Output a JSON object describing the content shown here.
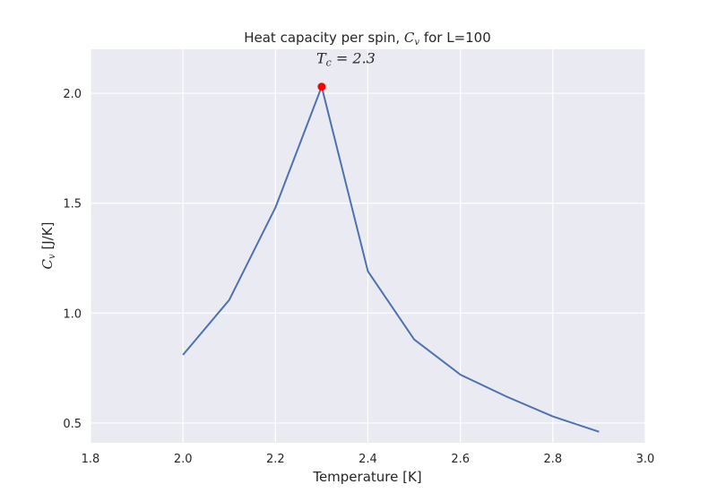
{
  "chart_data": {
    "type": "line",
    "title": {
      "prefix": "Heat capacity per spin, ",
      "math_main": "C",
      "math_sub": "v",
      "suffix": " for L=100"
    },
    "xlabel": "Temperature [K]",
    "ylabel": {
      "math_main": "C",
      "math_sub": "v",
      "suffix": " [J/K]"
    },
    "xlim": [
      1.8,
      3.0
    ],
    "ylim": [
      0.41,
      2.2
    ],
    "xticks": [
      1.8,
      2.0,
      2.2,
      2.4,
      2.6,
      2.8,
      3.0
    ],
    "xtick_labels": [
      "1.8",
      "2.0",
      "2.2",
      "2.4",
      "2.6",
      "2.8",
      "3.0"
    ],
    "yticks": [
      0.5,
      1.0,
      1.5,
      2.0
    ],
    "ytick_labels": [
      "0.5",
      "1.0",
      "1.5",
      "2.0"
    ],
    "grid": true,
    "background": "#eaeaf2",
    "series": [
      {
        "color": "#4c72b0",
        "x": [
          2.0,
          2.1,
          2.2,
          2.3,
          2.4,
          2.5,
          2.6,
          2.7,
          2.8,
          2.9
        ],
        "y": [
          0.81,
          1.06,
          1.48,
          2.03,
          1.19,
          0.88,
          0.72,
          0.62,
          0.53,
          0.46
        ]
      }
    ],
    "highlight_point": {
      "x": 2.3,
      "y": 2.03,
      "color": "#ff0000"
    },
    "annotation": {
      "text": "T_c = 2.3",
      "main": "T",
      "sub": "c",
      "rest": " = 2.3",
      "x": 2.3,
      "y": 2.03
    }
  }
}
